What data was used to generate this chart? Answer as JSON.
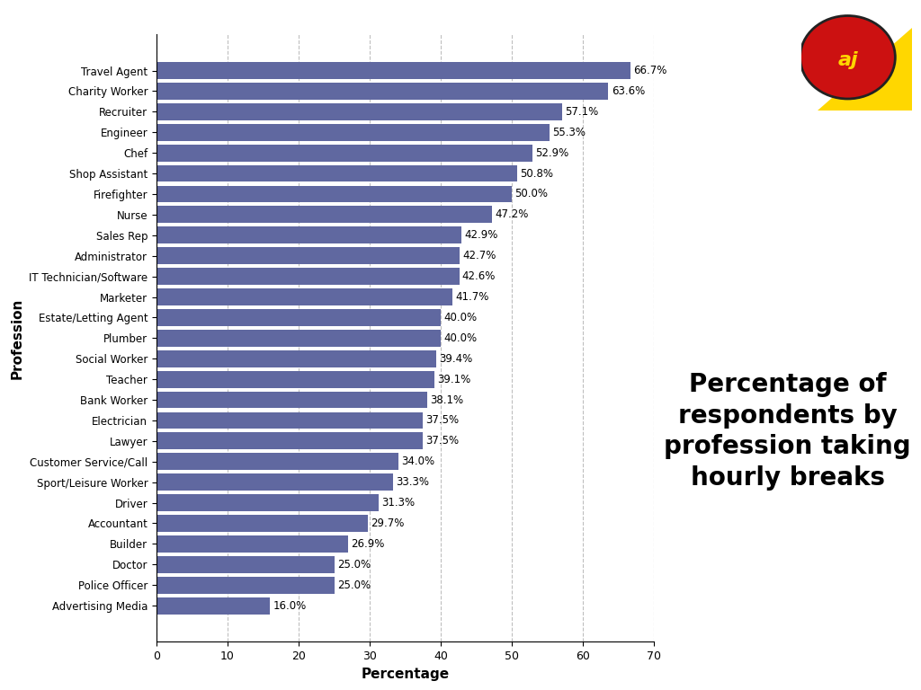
{
  "professions": [
    "Advertising Media",
    "Police Officer",
    "Doctor",
    "Builder",
    "Accountant",
    "Driver",
    "Sport/Leisure Worker",
    "Customer Service/Call",
    "Lawyer",
    "Electrician",
    "Bank Worker",
    "Teacher",
    "Social Worker",
    "Plumber",
    "Estate/Letting Agent",
    "Marketer",
    "IT Technician/Software",
    "Administrator",
    "Sales Rep",
    "Nurse",
    "Firefighter",
    "Shop Assistant",
    "Chef",
    "Engineer",
    "Recruiter",
    "Charity Worker",
    "Travel Agent"
  ],
  "values": [
    16.0,
    25.0,
    25.0,
    26.9,
    29.7,
    31.3,
    33.3,
    34.0,
    37.5,
    37.5,
    38.1,
    39.1,
    39.4,
    40.0,
    40.0,
    41.7,
    42.6,
    42.7,
    42.9,
    47.2,
    50.0,
    50.8,
    52.9,
    55.3,
    57.1,
    63.6,
    66.7
  ],
  "bar_color": "#6068A0",
  "background_color": "#FFFFFF",
  "xlabel": "Percentage",
  "ylabel": "Profession",
  "xlim": [
    0,
    70
  ],
  "xticks": [
    0,
    10,
    20,
    30,
    40,
    50,
    60,
    70
  ],
  "title_text": "Percentage of\nrespondents by\nprofession taking\nhourly breaks",
  "title_fontsize": 20,
  "label_fontsize": 8.5,
  "axis_label_fontsize": 11,
  "tick_fontsize": 9
}
